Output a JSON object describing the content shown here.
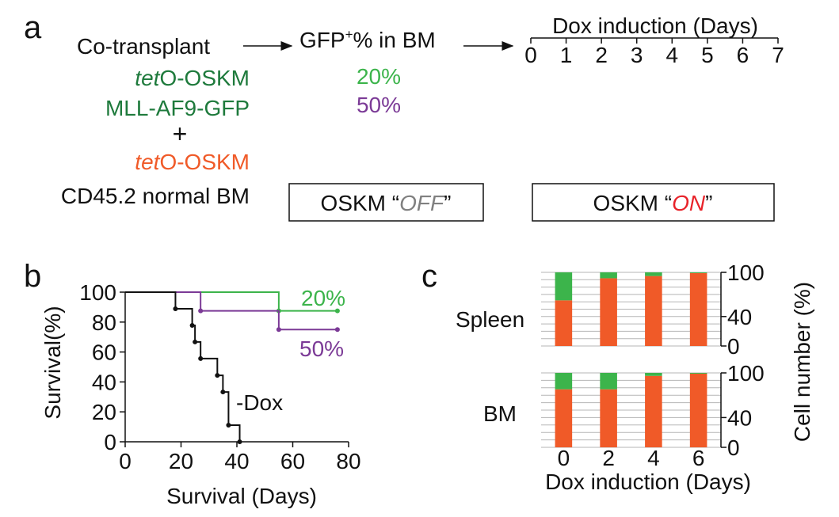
{
  "colors": {
    "green": "#3cb44b",
    "dark_green": "#1e7a3c",
    "orange": "#f05a28",
    "purple": "#7b3a96",
    "red": "#e8232a",
    "gray": "#808080",
    "black": "#111111",
    "grid": "#b5b5b5"
  },
  "panel_a": {
    "letter": "a",
    "co_transplant": "Co-transplant",
    "donor1_line1_italic": "tet",
    "donor1_line1_rest": "O-OSKM",
    "donor1_line2": "MLL-AF9-GFP",
    "plus": "+",
    "donor2_line1_italic": "tet",
    "donor2_line1_rest": "O-OSKM",
    "donor2_line2": "CD45.2 normal BM",
    "gfp_label_pre": "GFP",
    "gfp_label_sup": "+",
    "gfp_label_post": "% in BM",
    "gfp_low": "20%",
    "gfp_high": "50%",
    "dox_title": "Dox induction (Days)",
    "dox_days": [
      "0",
      "1",
      "2",
      "3",
      "4",
      "5",
      "6",
      "7"
    ],
    "off_box_pre": "OSKM “",
    "off_box_state": "OFF",
    "off_box_post": "”",
    "on_box_pre": "OSKM “",
    "on_box_state": "ON",
    "on_box_post": "”"
  },
  "panel_b": {
    "letter": "b",
    "label_20": "20%",
    "label_50": "50%",
    "label_nodox": "-Dox"
  },
  "panel_c": {
    "letter": "c",
    "row1_label": "Spleen",
    "row2_label": "BM"
  },
  "chart_data": [
    {
      "type": "line",
      "subtype": "kaplan-meier",
      "xlabel": "Survival (Days)",
      "ylabel": "Survival(%)",
      "xlim": [
        0,
        80
      ],
      "ylim": [
        0,
        100
      ],
      "xticks": [
        0,
        20,
        40,
        60,
        80
      ],
      "yticks": [
        0,
        20,
        40,
        60,
        80,
        100
      ],
      "grid": false,
      "series": [
        {
          "name": "20%",
          "color": "#3cb44b",
          "x": [
            0,
            55,
            76
          ],
          "y": [
            100,
            87.5,
            87.5
          ],
          "censor_x": [
            55,
            76
          ],
          "censor_y": [
            87.5,
            87.5
          ]
        },
        {
          "name": "50%",
          "color": "#7b3a96",
          "x": [
            0,
            27,
            55,
            76
          ],
          "y": [
            100,
            87.5,
            75,
            75
          ],
          "censor_x": [
            27,
            55,
            76
          ],
          "censor_y": [
            87.5,
            75,
            75
          ]
        },
        {
          "name": "-Dox",
          "color": "#111111",
          "x": [
            0,
            18,
            24,
            25,
            27,
            33,
            35,
            37,
            41
          ],
          "y": [
            100,
            88.9,
            77.8,
            66.7,
            55.6,
            44.4,
            33.3,
            11.1,
            0
          ],
          "censor_x": [
            18,
            24,
            25,
            27,
            33,
            35,
            37,
            41
          ],
          "censor_y": [
            88.9,
            77.8,
            66.7,
            55.6,
            44.4,
            33.3,
            11.1,
            0
          ]
        }
      ]
    },
    {
      "type": "bar",
      "subtype": "stacked-100",
      "xlabel": "Dox induction (Days)",
      "ylabel": "Cell number (%)",
      "categories": [
        "0",
        "2",
        "4",
        "6"
      ],
      "yticks": [
        0,
        40,
        100
      ],
      "ylim": [
        0,
        100
      ],
      "grid": true,
      "panels": [
        {
          "name": "Spleen",
          "series": [
            {
              "name": "orange",
              "color": "#f05a28",
              "values": [
                62,
                92,
                95,
                99
              ]
            },
            {
              "name": "green",
              "color": "#3cb44b",
              "values": [
                38,
                8,
                5,
                1
              ]
            }
          ]
        },
        {
          "name": "BM",
          "series": [
            {
              "name": "orange",
              "color": "#f05a28",
              "values": [
                78,
                78,
                96,
                99
              ]
            },
            {
              "name": "green",
              "color": "#3cb44b",
              "values": [
                22,
                22,
                4,
                1
              ]
            }
          ]
        }
      ]
    }
  ]
}
